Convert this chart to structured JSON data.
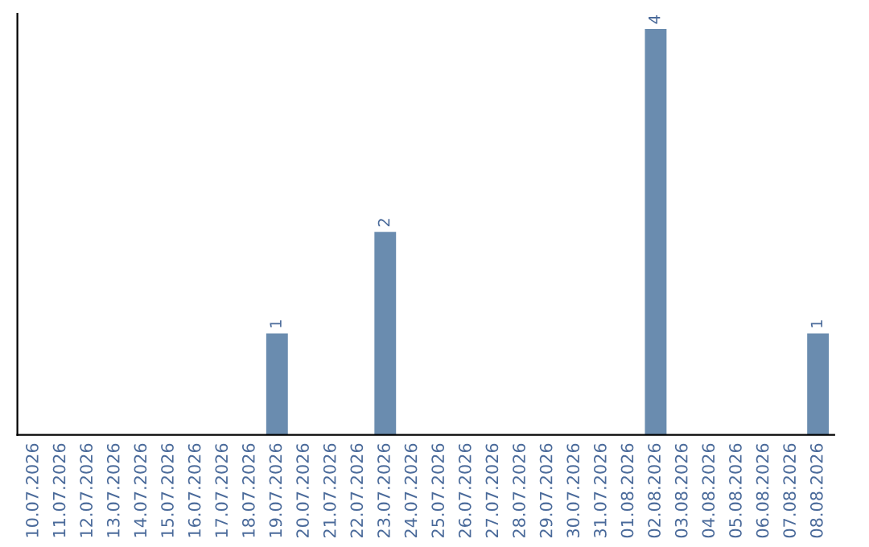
{
  "chart_data": {
    "type": "bar",
    "categories": [
      "10.07.2026",
      "11.07.2026",
      "12.07.2026",
      "13.07.2026",
      "14.07.2026",
      "15.07.2026",
      "16.07.2026",
      "17.07.2026",
      "18.07.2026",
      "19.07.2026",
      "20.07.2026",
      "21.07.2026",
      "22.07.2026",
      "23.07.2026",
      "24.07.2026",
      "25.07.2026",
      "26.07.2026",
      "27.07.2026",
      "28.07.2026",
      "29.07.2026",
      "30.07.2026",
      "31.07.2026",
      "01.08.2026",
      "02.08.2026",
      "03.08.2026",
      "04.08.2026",
      "05.08.2026",
      "06.08.2026",
      "07.08.2026",
      "08.08.2026"
    ],
    "values": [
      0,
      0,
      0,
      0,
      0,
      0,
      0,
      0,
      0,
      1,
      0,
      0,
      0,
      2,
      0,
      0,
      0,
      0,
      0,
      0,
      0,
      0,
      0,
      4,
      0,
      0,
      0,
      0,
      0,
      1
    ],
    "value_labels": [
      null,
      null,
      null,
      null,
      null,
      null,
      null,
      null,
      null,
      "1",
      null,
      null,
      null,
      "2",
      null,
      null,
      null,
      null,
      null,
      null,
      null,
      null,
      null,
      "4",
      null,
      null,
      null,
      null,
      null,
      "1"
    ],
    "color": "#6a8caf",
    "ylim": [
      0,
      4.15
    ],
    "tick_labels": "x",
    "grid": false,
    "legend": false
  }
}
